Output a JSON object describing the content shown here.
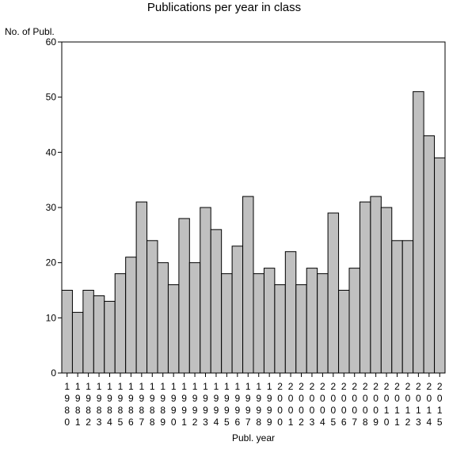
{
  "chart_data": {
    "type": "bar",
    "title": "Publications per year in class",
    "ylabel": "No. of Publ.",
    "xlabel": "Publ. year",
    "ylim": [
      0,
      60
    ],
    "yticks": [
      0,
      10,
      20,
      30,
      40,
      50,
      60
    ],
    "grid": false,
    "bar_color": "#c0c0c0",
    "edge_color": "#000000",
    "categories": [
      "1980",
      "1981",
      "1982",
      "1983",
      "1984",
      "1985",
      "1986",
      "1987",
      "1988",
      "1989",
      "1990",
      "1991",
      "1992",
      "1993",
      "1994",
      "1995",
      "1996",
      "1997",
      "1998",
      "1999",
      "2000",
      "2001",
      "2002",
      "2003",
      "2004",
      "2005",
      "2006",
      "2007",
      "2008",
      "2009",
      "2010",
      "2011",
      "2012",
      "2013",
      "2014",
      "2015"
    ],
    "values": [
      15,
      11,
      15,
      14,
      13,
      18,
      21,
      31,
      24,
      20,
      16,
      28,
      20,
      30,
      26,
      18,
      23,
      32,
      18,
      19,
      16,
      22,
      16,
      19,
      18,
      29,
      15,
      19,
      31,
      32,
      30,
      24,
      24,
      51,
      43,
      39
    ]
  }
}
